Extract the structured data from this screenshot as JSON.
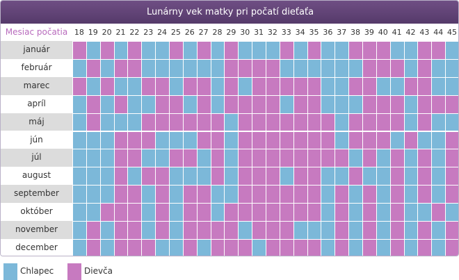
{
  "title": "Lunárny vek matky pri počatí dieťaťa",
  "header_month_label": "Mesiac počatia",
  "ages": [
    "18",
    "19",
    "20",
    "21",
    "22",
    "23",
    "24",
    "25",
    "26",
    "27",
    "28",
    "29",
    "30",
    "31",
    "32",
    "33",
    "34",
    "35",
    "36",
    "37",
    "38",
    "39",
    "40",
    "41",
    "42",
    "43",
    "44",
    "45"
  ],
  "months": [
    "január",
    "február",
    "marec",
    "apríl",
    "máj",
    "jún",
    "júl",
    "august",
    "september",
    "október",
    "november",
    "december"
  ],
  "colors": {
    "chlapec": "#7cb8d9",
    "dievca": "#c77ac0",
    "month_bg_alt": "#dcdcdc"
  },
  "legend": [
    {
      "key": "B",
      "label": "Chlapec"
    },
    {
      "key": "G",
      "label": "Dievča"
    }
  ],
  "grid": [
    "GBGBGBBGBGBGBBBGBGBBGGGBBGGB",
    "BGBGGBBBBBBGGGGBBBBBBGGGBGBB",
    "GBGBBGGBGGBGBGGGGGBBGGBBGGBB",
    "BGBGBBGGBGBGGGGBGGBBBGGGBGGG",
    "BGBBBGGGGGGBGGGGGGGBGGGGBGBB",
    "BBBGGGBBBGGBGGGGGGGBGGGBGBBG",
    "BBBGGBBGGBGBGGGGGGGGBGBGBGBG",
    "BBBGBGGBBBGBGGGBGGBBGBBGBGBG",
    "BBBGGBGBGGBBGGGGGGBGBGBGBGBG",
    "BBGGGBGBGGBGGGGGGGBGBGBGBBGB",
    "BGBGGBGBGGGGBGGGBBBGBGBGBGBG",
    "BGBGGGBBGBGGGBGGGGBGBGBGBGBG"
  ]
}
